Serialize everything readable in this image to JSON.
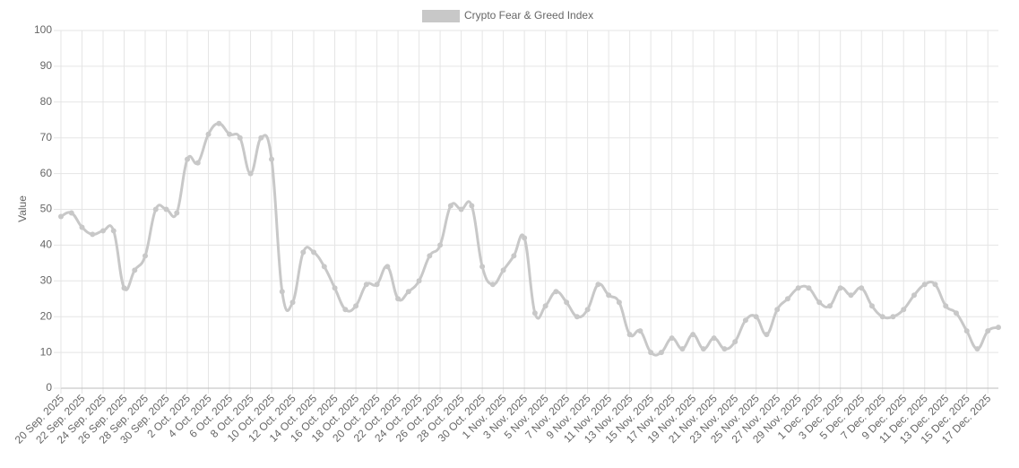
{
  "chart_data": {
    "type": "line",
    "y_label": "Value",
    "categories": [
      "20 Sep. 2025",
      null,
      "22 Sep. 2025",
      null,
      "24 Sep. 2025",
      null,
      "26 Sep. 2025",
      null,
      "28 Sep. 2025",
      null,
      "30 Sep. 2025",
      null,
      "2 Oct. 2025",
      null,
      "4 Oct. 2025",
      null,
      "6 Oct. 2025",
      null,
      "8 Oct. 2025",
      null,
      "10 Oct. 2025",
      null,
      "12 Oct. 2025",
      null,
      "14 Oct. 2025",
      null,
      "16 Oct. 2025",
      null,
      "18 Oct. 2025",
      null,
      "20 Oct. 2025",
      null,
      "22 Oct. 2025",
      null,
      "24 Oct. 2025",
      null,
      "26 Oct. 2025",
      null,
      "28 Oct. 2025",
      null,
      "30 Oct. 2025",
      null,
      "1 Nov. 2025",
      null,
      "3 Nov. 2025",
      null,
      "5 Nov. 2025",
      null,
      "7 Nov. 2025",
      null,
      "9 Nov. 2025",
      null,
      "11 Nov. 2025",
      null,
      "13 Nov. 2025",
      null,
      "15 Nov. 2025",
      null,
      "17 Nov. 2025",
      null,
      "19 Nov. 2025",
      null,
      "21 Nov. 2025",
      null,
      "23 Nov. 2025",
      null,
      "25 Nov. 2025",
      null,
      "27 Nov. 2025",
      null,
      "29 Nov. 2025",
      null,
      "1 Dec. 2025",
      null,
      "3 Dec. 2025",
      null,
      "5 Dec. 2025",
      null,
      "7 Dec. 2025",
      null,
      "9 Dec. 2025",
      null,
      "11 Dec. 2025",
      null,
      "13 Dec. 2025",
      null,
      "15 Dec. 2025",
      null,
      "17 Dec. 2025",
      null
    ],
    "series": [
      {
        "name": "Crypto Fear & Greed Index",
        "color": "#c8c8c8",
        "values": [
          48,
          49,
          45,
          43,
          44,
          44,
          28,
          33,
          37,
          50,
          50,
          49,
          64,
          63,
          71,
          74,
          71,
          70,
          60,
          70,
          64,
          27,
          24,
          38,
          38,
          34,
          28,
          22,
          23,
          29,
          29,
          34,
          25,
          27,
          30,
          37,
          40,
          51,
          50,
          51,
          34,
          29,
          33,
          37,
          42,
          21,
          23,
          27,
          24,
          20,
          22,
          29,
          26,
          24,
          15,
          16,
          10,
          10,
          14,
          11,
          15,
          11,
          14,
          11,
          13,
          19,
          20,
          15,
          22,
          25,
          28,
          28,
          24,
          23,
          28,
          26,
          28,
          23,
          20,
          20,
          22,
          26,
          29,
          29,
          23,
          21,
          16,
          11,
          16,
          17
        ]
      }
    ],
    "ylim": [
      0,
      100
    ],
    "yticks": [
      0,
      10,
      20,
      30,
      40,
      50,
      60,
      70,
      80,
      90,
      100
    ],
    "grid": true,
    "legend": "top"
  }
}
